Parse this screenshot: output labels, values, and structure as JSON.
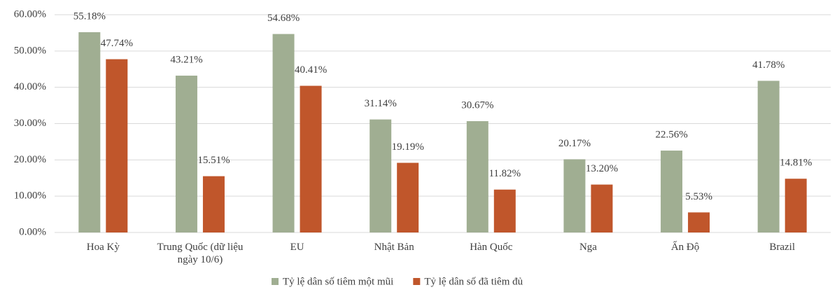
{
  "chart_data": {
    "type": "bar",
    "categories": [
      "Hoa Kỳ",
      "Trung Quốc (dữ liệu ngày 10/6)",
      "EU",
      "Nhật Bản",
      "Hàn Quốc",
      "Nga",
      "Ấn Độ",
      "Brazil"
    ],
    "series": [
      {
        "name": "Tỷ lệ dân số tiêm một mũi",
        "color": "#a0ae92",
        "values": [
          55.18,
          43.21,
          54.68,
          31.14,
          30.67,
          20.17,
          22.56,
          41.78
        ],
        "value_labels": [
          "55.18%",
          "43.21%",
          "54.68%",
          "31.14%",
          "30.67%",
          "20.17%",
          "22.56%",
          "41.78%"
        ]
      },
      {
        "name": "Tỷ lệ dân số đã tiêm đủ",
        "color": "#c0562b",
        "values": [
          47.74,
          15.51,
          40.41,
          19.19,
          11.82,
          13.2,
          5.53,
          14.81
        ],
        "value_labels": [
          "47.74%",
          "15.51%",
          "40.41%",
          "19.19%",
          "11.82%",
          "13.20%",
          "5.53%",
          "14.81%"
        ]
      }
    ],
    "ylim": [
      0,
      60
    ],
    "yticks": [
      {
        "value": 0,
        "label": "0.00%"
      },
      {
        "value": 10,
        "label": "10.00%"
      },
      {
        "value": 20,
        "label": "20.00%"
      },
      {
        "value": 30,
        "label": "30.00%"
      },
      {
        "value": 40,
        "label": "40.00%"
      },
      {
        "value": 50,
        "label": "50.00%"
      },
      {
        "value": 60,
        "label": "60.00%"
      }
    ],
    "grid": true,
    "legend": "bottom"
  }
}
